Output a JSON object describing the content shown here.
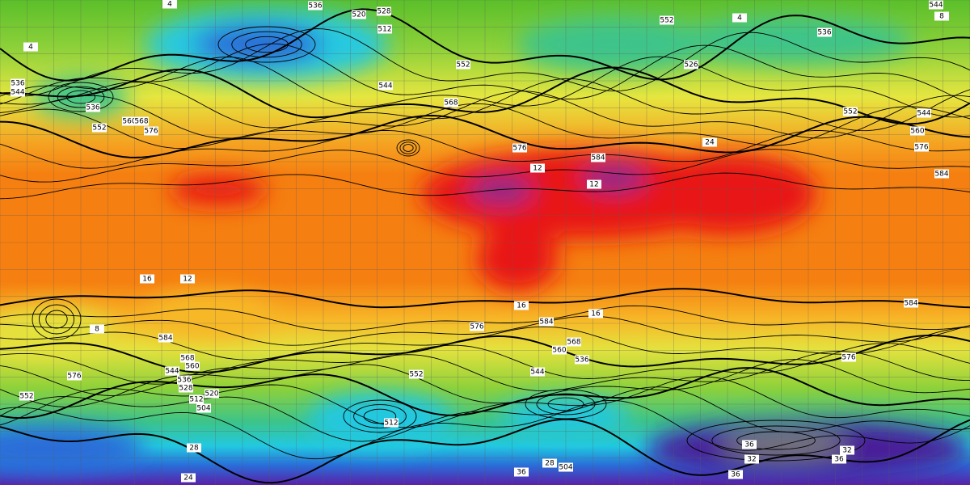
{
  "contour_labels": [
    536,
    528,
    512,
    520,
    552,
    536,
    544,
    526,
    536,
    544,
    536,
    552,
    560,
    568,
    576,
    568,
    552,
    544,
    576,
    584,
    552,
    544,
    560,
    576,
    584,
    584,
    568,
    560,
    544,
    536,
    528,
    512,
    504,
    520,
    576,
    552,
    576,
    584,
    560,
    568,
    544,
    552,
    512,
    536,
    576,
    584,
    504,
    16,
    12,
    8,
    12,
    12,
    16,
    16,
    24,
    36,
    32,
    36,
    32,
    36,
    28,
    36,
    24,
    28,
    8,
    4,
    4,
    4
  ]
}
